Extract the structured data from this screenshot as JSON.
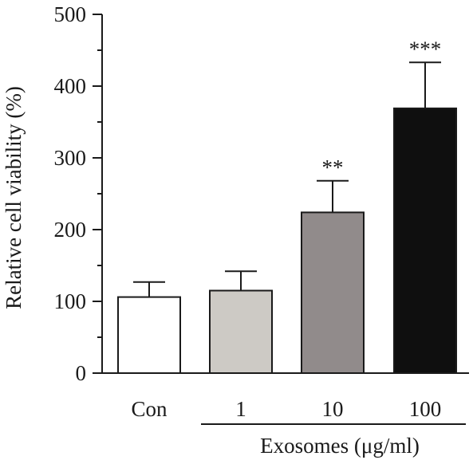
{
  "chart_data": {
    "type": "bar",
    "title": "",
    "ylabel": "Relative cell viability (%)",
    "ylim": [
      0,
      500
    ],
    "yticks": [
      0,
      100,
      200,
      300,
      400,
      500
    ],
    "categories": [
      "Con",
      "1",
      "10",
      "100"
    ],
    "values": [
      106,
      115,
      224,
      369
    ],
    "errors": [
      21,
      27,
      44,
      64
    ],
    "significance": [
      "",
      "",
      "**",
      "***"
    ],
    "bar_colors": [
      "#ffffff",
      "#cdcac5",
      "#918b8b",
      "#0f0f0f"
    ],
    "group_label": "Exosomes (μg/ml)",
    "grid": false
  }
}
